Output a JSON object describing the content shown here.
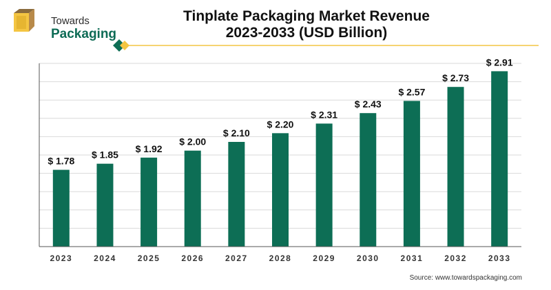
{
  "brand": {
    "line1": "Towards",
    "line2": "Packaging"
  },
  "title": {
    "line1": "Tinplate Packaging Market Revenue",
    "line2": "2023-2033 (USD Billion)"
  },
  "source": "Source: www.towardspackaging.com",
  "colors": {
    "bar": "#0d6e55",
    "grid": "#d9d9d9",
    "axis": "#333333",
    "accent": "#f4c542",
    "brand_green": "#0d6b55"
  },
  "chart_data": {
    "type": "bar",
    "categories": [
      "2023",
      "2024",
      "2025",
      "2026",
      "2027",
      "2028",
      "2029",
      "2030",
      "2031",
      "2032",
      "2033"
    ],
    "values": [
      1.78,
      1.85,
      1.92,
      2.0,
      2.1,
      2.2,
      2.31,
      2.43,
      2.57,
      2.73,
      2.91
    ],
    "data_labels": [
      "$ 1.78",
      "$ 1.85",
      "$ 1.92",
      "$ 2.00",
      "$ 2.10",
      "$ 2.20",
      "$ 2.31",
      "$ 2.43",
      "$ 2.57",
      "$ 2.73",
      "$ 2.91"
    ],
    "title": "Tinplate Packaging Market Revenue 2023-2033 (USD Billion)",
    "xlabel": "",
    "ylabel": "",
    "ylim": [
      0.9,
      3.0
    ],
    "grid": true,
    "legend": "none"
  }
}
